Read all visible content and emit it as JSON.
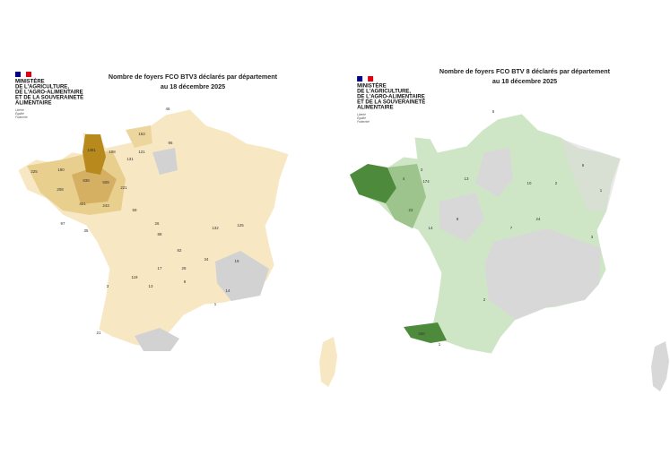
{
  "maps": [
    {
      "title": "Nombre de foyers FCO BTV3 déclarés par département",
      "subtitle": "au 18 décembre 2025",
      "logo": {
        "lines": [
          "MINISTÈRE",
          "DE L'AGRICULTURE,",
          "DE L'AGRO-ALIMENTAIRE",
          "ET DE LA SOUVERAINETÉ",
          "ALIMENTAIRE"
        ],
        "motto": [
          "Liberté",
          "Égalité",
          "Fraternité"
        ]
      },
      "labels": [
        "46",
        "163",
        "95",
        "1381",
        "108",
        "121",
        "131",
        "225",
        "190",
        "838",
        "508",
        "208",
        "221",
        "421",
        "243",
        "97",
        "35",
        "59",
        "26",
        "125",
        "132",
        "82",
        "88",
        "13",
        "14",
        "34",
        "17",
        "119",
        "28",
        "19",
        "9",
        "21",
        "3",
        "1"
      ]
    },
    {
      "title": "Nombre de foyers FCO BTV 8 déclarés par département",
      "subtitle": "au 18 décembre 2025",
      "logo": {
        "lines": [
          "MINISTÈRE",
          "DE L'AGRICULTURE,",
          "DE L'AGRO-ALIMENTAIRE",
          "ET DE LA SOUVERAINETÉ",
          "ALIMENTAIRE"
        ],
        "motto": [
          "Liberté",
          "Égalité",
          "Fraternité"
        ]
      },
      "labels": [
        "5",
        "3",
        "4",
        "174",
        "22",
        "13",
        "10",
        "24",
        "2",
        "1",
        "6",
        "8",
        "7",
        "14",
        "3",
        "2",
        "340",
        "1"
      ]
    }
  ]
}
